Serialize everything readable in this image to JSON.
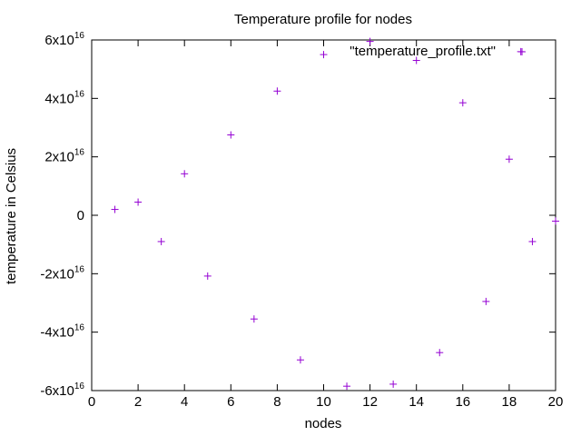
{
  "chart_data": {
    "type": "scatter",
    "title": "Temperature profile for nodes",
    "xlabel": "nodes",
    "ylabel": "temperature in Celsius",
    "xlim": [
      0,
      20
    ],
    "ylim": [
      -6e+16,
      6e+16
    ],
    "x_ticks": [
      {
        "value": 0,
        "label": "0"
      },
      {
        "value": 2,
        "label": "2"
      },
      {
        "value": 4,
        "label": "4"
      },
      {
        "value": 6,
        "label": "6"
      },
      {
        "value": 8,
        "label": "8"
      },
      {
        "value": 10,
        "label": "10"
      },
      {
        "value": 12,
        "label": "12"
      },
      {
        "value": 14,
        "label": "14"
      },
      {
        "value": 16,
        "label": "16"
      },
      {
        "value": 18,
        "label": "18"
      },
      {
        "value": 20,
        "label": "20"
      }
    ],
    "y_ticks": [
      {
        "value": 6e+16,
        "mantissa": "6x10",
        "exponent": "16"
      },
      {
        "value": 4e+16,
        "mantissa": "4x10",
        "exponent": "16"
      },
      {
        "value": 2e+16,
        "mantissa": "2x10",
        "exponent": "16"
      },
      {
        "value": 0,
        "mantissa": "0",
        "exponent": ""
      },
      {
        "value": -2e+16,
        "mantissa": "-2x10",
        "exponent": "16"
      },
      {
        "value": -4e+16,
        "mantissa": "-4x10",
        "exponent": "16"
      },
      {
        "value": -6e+16,
        "mantissa": "-6x10",
        "exponent": "16"
      }
    ],
    "grid": false,
    "legend_position": "top-right",
    "series": [
      {
        "name": "\"temperature_profile.txt\"",
        "color": "#9400d3",
        "marker": "plus",
        "points": [
          [
            1,
            2000000000000000.0
          ],
          [
            2,
            4500000000000000.0
          ],
          [
            3,
            -9000000000000000.0
          ],
          [
            4,
            1.42e+16
          ],
          [
            5,
            -2.08e+16
          ],
          [
            6,
            2.75e+16
          ],
          [
            7,
            -3.55e+16
          ],
          [
            8,
            4.25e+16
          ],
          [
            9,
            -4.95e+16
          ],
          [
            10,
            5.5e+16
          ],
          [
            11,
            -5.85e+16
          ],
          [
            12,
            5.95e+16
          ],
          [
            13,
            -5.78e+16
          ],
          [
            14,
            5.3e+16
          ],
          [
            15,
            -4.7e+16
          ],
          [
            16,
            3.85e+16
          ],
          [
            17,
            -2.95e+16
          ],
          [
            18,
            1.92e+16
          ],
          [
            18.5,
            5.6e+16
          ],
          [
            19,
            -9000000000000000.0
          ],
          [
            20,
            -2000000000000000.0
          ]
        ]
      }
    ]
  }
}
